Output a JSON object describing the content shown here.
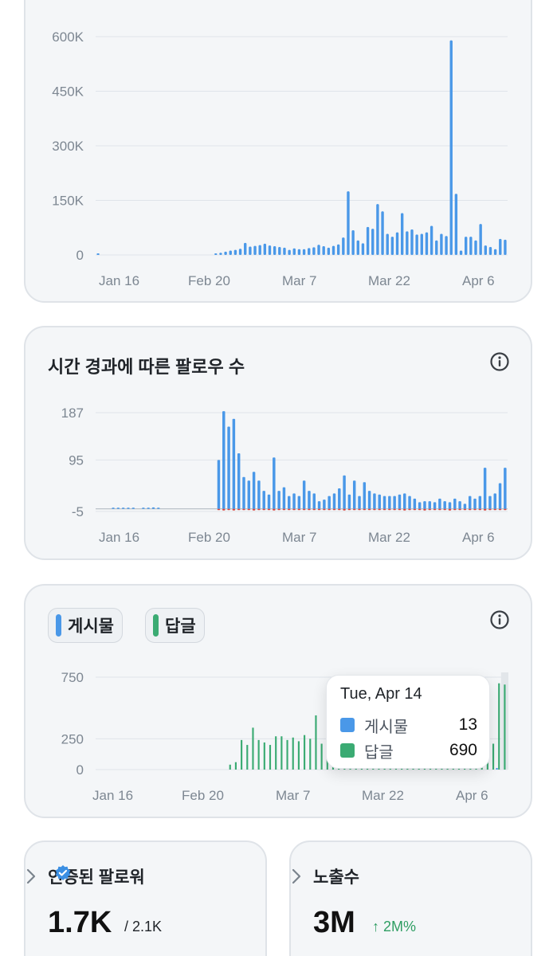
{
  "colors": {
    "blue": "#4a98e8",
    "green": "#3bab73",
    "red": "#d9423a",
    "grid": "#dfe4ea",
    "axis": "#8a95a1"
  },
  "x_labels": [
    "Jan 16",
    "Feb 20",
    "Mar 7",
    "Mar 22",
    "Apr 6"
  ],
  "impressions_card": {
    "chart_data": {
      "type": "bar",
      "y_ticks": [
        "600K",
        "450K",
        "300K",
        "150K",
        "0"
      ],
      "ylim": [
        0,
        600000
      ],
      "x_tick_labels": [
        "Jan 16",
        "Feb 20",
        "Mar 7",
        "Mar 22",
        "Apr 6"
      ],
      "values": [
        0,
        0,
        0,
        0,
        0,
        0,
        0,
        0,
        0,
        0,
        0,
        0,
        0,
        0,
        0,
        0,
        0,
        0,
        0,
        0,
        0,
        0,
        0,
        0,
        3000,
        6000,
        9000,
        12000,
        14000,
        17000,
        33000,
        23000,
        25000,
        27000,
        31000,
        26000,
        24000,
        22000,
        20000,
        14000,
        18000,
        16000,
        16000,
        19000,
        21000,
        28000,
        24000,
        20000,
        25000,
        29000,
        48000,
        175000,
        68000,
        40000,
        32000,
        77000,
        72000,
        140000,
        120000,
        58000,
        50000,
        62000,
        115000,
        65000,
        70000,
        56000,
        58000,
        62000,
        80000,
        40000,
        58000,
        52000,
        590000,
        168000,
        12000,
        50000,
        50000,
        40000,
        85000,
        26000,
        22000,
        16000,
        44000,
        42000
      ]
    }
  },
  "followers_card": {
    "title": "시간 경과에 따른 팔로우 수",
    "info_icon": "info-icon",
    "chart_data": {
      "type": "bar",
      "y_ticks": [
        "187",
        "95",
        "-5"
      ],
      "ylim": [
        -5,
        187
      ],
      "x_tick_labels": [
        "Jan 16",
        "Feb 20",
        "Mar 7",
        "Mar 22",
        "Apr 6"
      ],
      "series": [
        {
          "name": "gain",
          "values": [
            0,
            0,
            0,
            1,
            1,
            2,
            1,
            1,
            0,
            2,
            1,
            3,
            2,
            0,
            0,
            0,
            0,
            0,
            0,
            0,
            0,
            0,
            0,
            0,
            95,
            190,
            160,
            175,
            108,
            62,
            55,
            72,
            55,
            35,
            28,
            100,
            35,
            42,
            25,
            30,
            25,
            55,
            35,
            30,
            15,
            18,
            25,
            30,
            40,
            65,
            28,
            55,
            25,
            52,
            35,
            30,
            28,
            25,
            25,
            25,
            28,
            30,
            25,
            20,
            13,
            15,
            15,
            13,
            20,
            15,
            13,
            20,
            15,
            10,
            25,
            20,
            25,
            80,
            25,
            30,
            50,
            80
          ]
        },
        {
          "name": "loss",
          "values": [
            0,
            0,
            0,
            0,
            0,
            0,
            0,
            0,
            0,
            0,
            0,
            0,
            0,
            0,
            0,
            0,
            0,
            0,
            0,
            0,
            0,
            0,
            0,
            0,
            -1,
            -3,
            -2,
            -3,
            -2,
            -2,
            -2,
            -3,
            -2,
            -2,
            -2,
            -3,
            -2,
            -2,
            -2,
            -2,
            -2,
            -2,
            -2,
            -2,
            -2,
            -2,
            -2,
            -2,
            -2,
            -3,
            -2,
            -2,
            -2,
            -2,
            -2,
            -2,
            -2,
            -2,
            -2,
            -2,
            -2,
            -3,
            -2,
            -2,
            -2,
            -3,
            -2,
            -2,
            -2,
            -2,
            -3,
            -2,
            -2,
            -2,
            -2,
            -2,
            -2,
            -3,
            -2,
            -2,
            -2,
            -2
          ]
        }
      ]
    }
  },
  "posts_card": {
    "legend": [
      {
        "label": "게시물",
        "color": "#4a98e8"
      },
      {
        "label": "답글",
        "color": "#3bab73"
      }
    ],
    "info_icon": "info-icon",
    "chart_data": {
      "type": "bar",
      "y_ticks": [
        "750",
        "250",
        "0"
      ],
      "ylim": [
        0,
        750
      ],
      "x_tick_labels": [
        "Jan 16",
        "Feb 20",
        "Mar 7",
        "Mar 22",
        "Apr 6"
      ],
      "series": [
        {
          "name": "게시물",
          "values": [
            0,
            0,
            0,
            0,
            0,
            0,
            0,
            0,
            0,
            0,
            0,
            0,
            0,
            0,
            0,
            0,
            0,
            0,
            0,
            0,
            0,
            0,
            0,
            0,
            0,
            0,
            0,
            0,
            0,
            0,
            0,
            0,
            0,
            0,
            0,
            0,
            0,
            0,
            0,
            0,
            0,
            0,
            0,
            0,
            0,
            0,
            0,
            0,
            0,
            0,
            0,
            0,
            0,
            0,
            0,
            0,
            0,
            0,
            0,
            0,
            0,
            0,
            0,
            0,
            0,
            0,
            0,
            0,
            0,
            0,
            13
          ]
        },
        {
          "name": "답글",
          "values": [
            0,
            0,
            0,
            0,
            0,
            0,
            0,
            0,
            0,
            0,
            0,
            0,
            0,
            0,
            0,
            0,
            0,
            0,
            0,
            0,
            0,
            0,
            0,
            40,
            60,
            240,
            200,
            340,
            240,
            220,
            200,
            270,
            270,
            240,
            260,
            230,
            280,
            250,
            440,
            210,
            280,
            240,
            300,
            420,
            500,
            530,
            320,
            340,
            380,
            300,
            480,
            400,
            580,
            660,
            200,
            440,
            540,
            500,
            520,
            460,
            600,
            580,
            450,
            660,
            600,
            560,
            520,
            470,
            520,
            210,
            700,
            690
          ]
        }
      ]
    },
    "tooltip": {
      "date": "Tue, Apr 14",
      "rows": [
        {
          "label": "게시물",
          "value": "13",
          "color": "#4a98e8"
        },
        {
          "label": "답글",
          "value": "690",
          "color": "#3bab73"
        }
      ]
    }
  },
  "verified_followers": {
    "title": "인증된 팔로워",
    "badge_icon": "verified-badge-icon",
    "value": "1.7K",
    "total": "/ 2.1K"
  },
  "impressions_stat": {
    "title": "노출수",
    "value": "3M",
    "change": "↑ 2M%"
  }
}
